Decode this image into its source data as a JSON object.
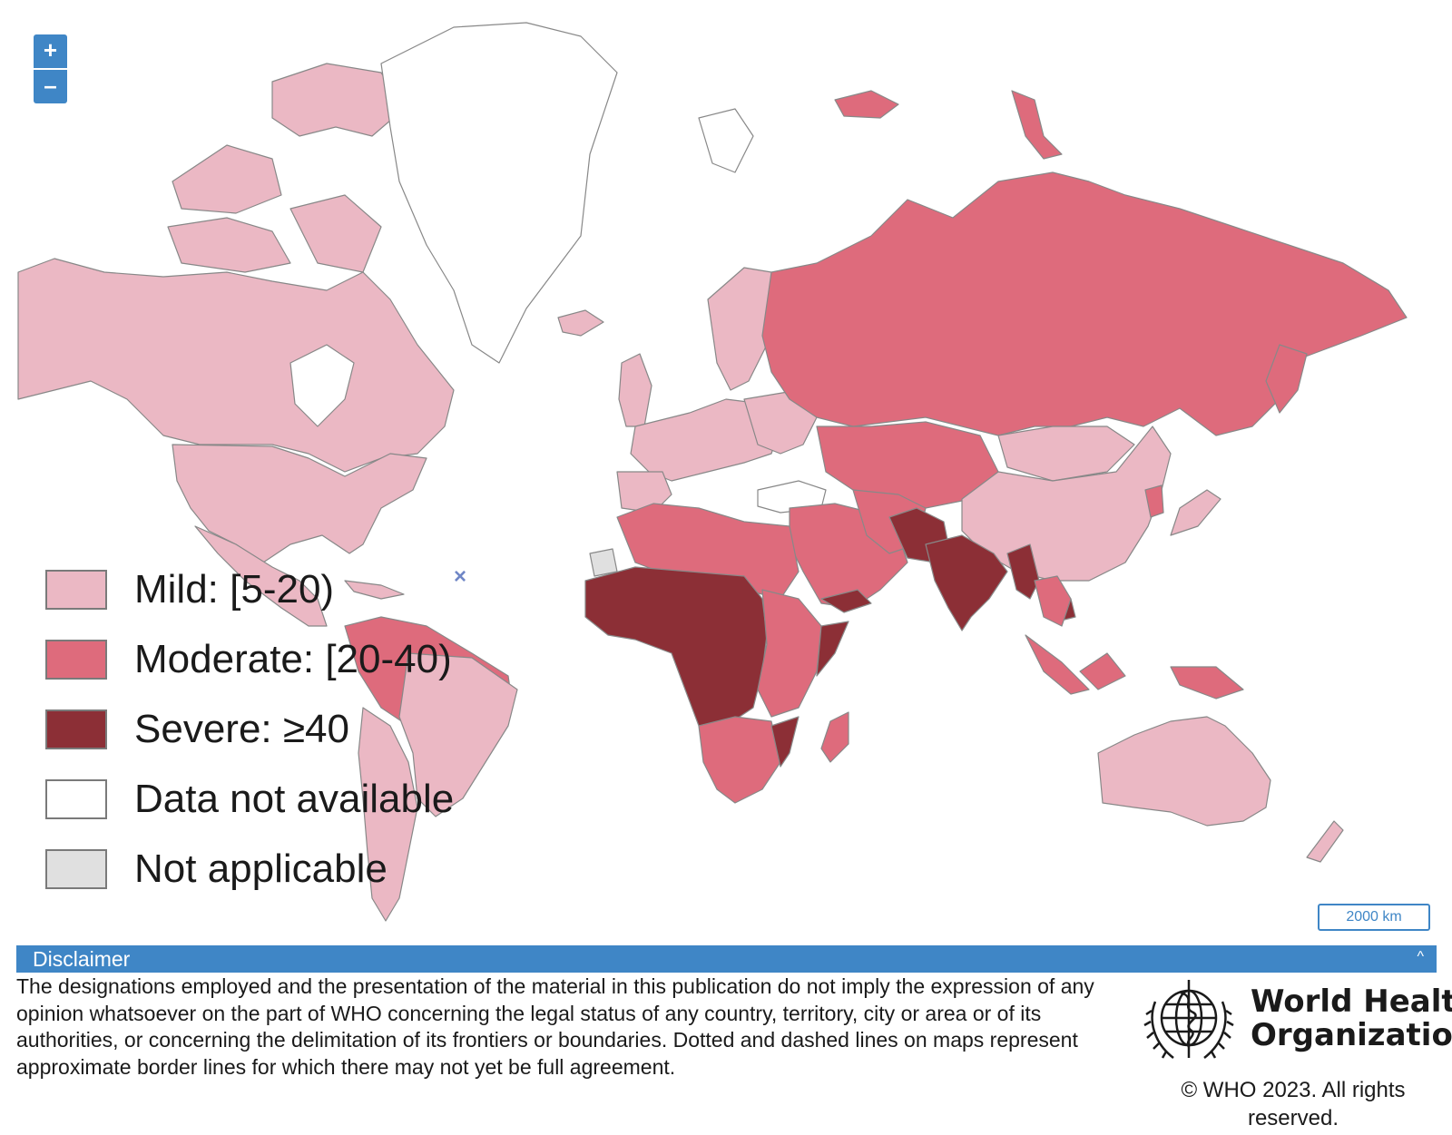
{
  "map": {
    "zoom_in_label": "+",
    "zoom_out_label": "–",
    "close_symbol": "×",
    "scale_label": "2000 km",
    "colors": {
      "mild": "#ebb8c4",
      "moderate": "#de6b7c",
      "severe": "#8c2f36",
      "not_available": "#ffffff",
      "not_applicable": "#e0e0e0",
      "border": "#888888",
      "accent": "#3f86c6"
    }
  },
  "legend": {
    "items": [
      {
        "label": "Mild: [5-20)",
        "color": "#ebb8c4"
      },
      {
        "label": "Moderate: [20-40)",
        "color": "#de6b7c"
      },
      {
        "label": "Severe: ≥40",
        "color": "#8c2f36"
      },
      {
        "label": "Data not available",
        "color": "#ffffff"
      },
      {
        "label": "Not applicable",
        "color": "#e0e0e0"
      }
    ]
  },
  "disclaimer": {
    "title": "Disclaimer",
    "toggle": "^",
    "text": "The designations employed and the presentation of the material in this publication do not imply the expression of any opinion whatsoever on the part of WHO concerning the legal status of any country, territory, city or area or of its authorities, or concerning the delimitation of its frontiers or boundaries. Dotted and dashed lines on maps represent approximate border lines for which there may not yet be full agreement."
  },
  "footer": {
    "org_line1": "World Health",
    "org_line2": "Organization",
    "copyright": "© WHO 2023. All rights reserved."
  }
}
